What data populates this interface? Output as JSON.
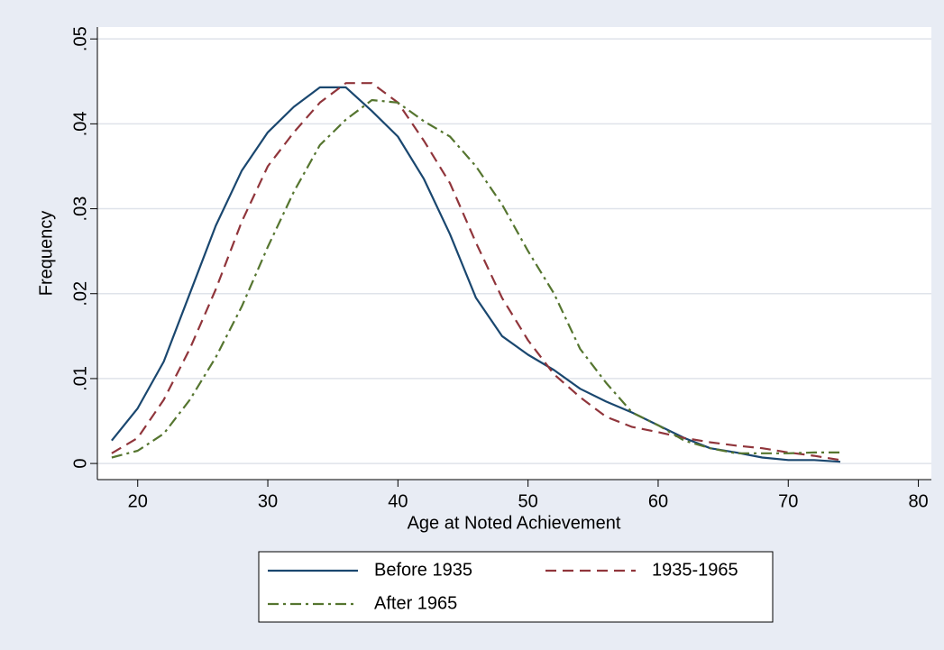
{
  "chart_data": {
    "type": "line",
    "xlabel": "Age at Noted Achievement",
    "ylabel": "Frequency",
    "x": [
      18,
      20,
      22,
      24,
      26,
      28,
      30,
      32,
      34,
      36,
      38,
      40,
      42,
      44,
      46,
      48,
      50,
      52,
      54,
      56,
      58,
      60,
      62,
      64,
      66,
      68,
      70,
      72,
      74
    ],
    "series": [
      {
        "name": "Before 1935",
        "color": "#1a476f",
        "dash": "solid",
        "values": [
          0.0027,
          0.0065,
          0.012,
          0.02,
          0.028,
          0.0345,
          0.039,
          0.042,
          0.0443,
          0.0443,
          0.0415,
          0.0385,
          0.0335,
          0.027,
          0.0195,
          0.015,
          0.0128,
          0.011,
          0.0088,
          0.0073,
          0.006,
          0.0045,
          0.003,
          0.0018,
          0.0013,
          0.0007,
          0.0004,
          0.0004,
          0.0002
        ]
      },
      {
        "name": "1935-1965",
        "color": "#90353b",
        "dash": "dash",
        "values": [
          0.0012,
          0.003,
          0.0075,
          0.0135,
          0.0205,
          0.0285,
          0.035,
          0.039,
          0.0425,
          0.0448,
          0.0448,
          0.0425,
          0.038,
          0.033,
          0.026,
          0.0195,
          0.0145,
          0.0105,
          0.0078,
          0.0055,
          0.0043,
          0.0037,
          0.003,
          0.0025,
          0.0021,
          0.0018,
          0.0013,
          0.0009,
          0.0004
        ]
      },
      {
        "name": "After 1965",
        "color": "#55752f",
        "dash": "dashdot",
        "values": [
          0.0007,
          0.0015,
          0.0035,
          0.0075,
          0.0125,
          0.0185,
          0.0255,
          0.032,
          0.0375,
          0.0405,
          0.0428,
          0.0425,
          0.0403,
          0.0385,
          0.035,
          0.0305,
          0.025,
          0.02,
          0.0135,
          0.0095,
          0.006,
          0.0045,
          0.0027,
          0.0018,
          0.0012,
          0.0012,
          0.0012,
          0.0013,
          0.0013
        ]
      }
    ],
    "xlim": [
      16.9,
      81
    ],
    "xticks": [
      20,
      30,
      40,
      50,
      60,
      70,
      80
    ],
    "ylim": [
      -0.0019,
      0.0514
    ],
    "yticks": [
      0,
      {
        "value": 0.01,
        "label": ".01"
      },
      {
        "value": 0.02,
        "label": ".02"
      },
      {
        "value": 0.03,
        "label": ".03"
      },
      {
        "value": 0.04,
        "label": ".04"
      },
      {
        "value": 0.05,
        "label": ".05"
      }
    ],
    "grid": true,
    "legend": "bottom"
  }
}
